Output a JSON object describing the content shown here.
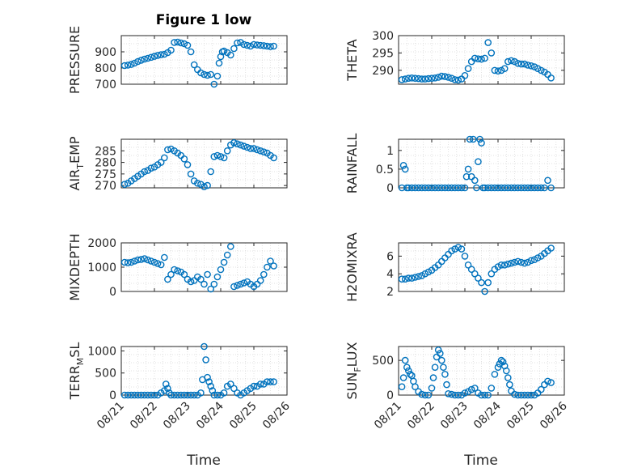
{
  "title": "Figure 1 low",
  "xlabel": "Time",
  "x_ticks": [
    "08/21",
    "08/22",
    "08/23",
    "08/24",
    "08/25",
    "08/26"
  ],
  "marker_color": "#0072BD",
  "chart_data": [
    {
      "type": "scatter",
      "ylabel": "PRESSURE",
      "ylim": [
        700,
        1000
      ],
      "yticks": [
        700,
        800,
        900
      ],
      "xlim": [
        0,
        5
      ],
      "x": [
        0.1,
        0.2,
        0.3,
        0.4,
        0.5,
        0.6,
        0.7,
        0.8,
        0.9,
        1.0,
        1.1,
        1.2,
        1.3,
        1.4,
        1.5,
        1.6,
        1.7,
        1.8,
        1.9,
        2.0,
        2.1,
        2.2,
        2.3,
        2.4,
        2.5,
        2.6,
        2.7,
        2.8,
        2.9,
        2.95,
        3.0,
        3.05,
        3.1,
        3.2,
        3.3,
        3.4,
        3.5,
        3.6,
        3.7,
        3.8,
        3.9,
        4.0,
        4.1,
        4.2,
        4.3,
        4.4,
        4.5,
        4.6
      ],
      "y": [
        815,
        818,
        822,
        830,
        840,
        848,
        855,
        860,
        866,
        872,
        878,
        882,
        885,
        895,
        910,
        958,
        960,
        955,
        950,
        940,
        900,
        820,
        790,
        770,
        760,
        755,
        760,
        700,
        750,
        830,
        870,
        900,
        905,
        895,
        880,
        920,
        955,
        958,
        945,
        940,
        935,
        945,
        942,
        940,
        938,
        935,
        932,
        935
      ]
    },
    {
      "type": "scatter",
      "ylabel": "THETA",
      "ylim": [
        286,
        300
      ],
      "yticks": [
        290,
        295,
        300
      ],
      "xlim": [
        0,
        5
      ],
      "x": [
        0.1,
        0.2,
        0.3,
        0.4,
        0.5,
        0.6,
        0.7,
        0.8,
        0.9,
        1.0,
        1.1,
        1.2,
        1.3,
        1.4,
        1.5,
        1.6,
        1.7,
        1.8,
        1.9,
        2.0,
        2.1,
        2.2,
        2.3,
        2.4,
        2.5,
        2.6,
        2.7,
        2.8,
        2.9,
        3.0,
        3.1,
        3.2,
        3.3,
        3.4,
        3.5,
        3.6,
        3.7,
        3.8,
        3.9,
        4.0,
        4.1,
        4.2,
        4.3,
        4.4,
        4.5,
        4.6
      ],
      "y": [
        287.3,
        287.5,
        287.7,
        287.8,
        287.7,
        287.6,
        287.5,
        287.5,
        287.6,
        287.7,
        287.8,
        288.0,
        288.3,
        288.2,
        288.0,
        287.7,
        287.3,
        287.2,
        287.5,
        288.5,
        290.5,
        292.5,
        293.5,
        293.3,
        293.2,
        293.5,
        298.0,
        295.0,
        290.0,
        289.8,
        290.0,
        290.5,
        292.5,
        292.8,
        292.5,
        292.0,
        291.8,
        291.8,
        291.5,
        291.3,
        291.0,
        290.5,
        290.0,
        289.5,
        288.8,
        287.8
      ]
    },
    {
      "type": "scatter",
      "ylabel": "AIR_TEMP",
      "ylim": [
        269,
        290
      ],
      "yticks": [
        270,
        275,
        280,
        285
      ],
      "xlim": [
        0,
        5
      ],
      "x": [
        0.1,
        0.2,
        0.3,
        0.4,
        0.5,
        0.6,
        0.7,
        0.8,
        0.9,
        1.0,
        1.1,
        1.2,
        1.3,
        1.4,
        1.5,
        1.6,
        1.7,
        1.8,
        1.9,
        2.0,
        2.1,
        2.2,
        2.3,
        2.4,
        2.5,
        2.6,
        2.7,
        2.8,
        2.9,
        3.0,
        3.1,
        3.2,
        3.3,
        3.4,
        3.5,
        3.6,
        3.7,
        3.8,
        3.9,
        4.0,
        4.1,
        4.2,
        4.3,
        4.4,
        4.5,
        4.6
      ],
      "y": [
        270.5,
        271.0,
        272.0,
        273.0,
        274.0,
        275.0,
        276.0,
        276.5,
        277.5,
        278.0,
        279.0,
        280.0,
        282.0,
        285.5,
        285.8,
        285.0,
        284.0,
        283.0,
        281.5,
        279.0,
        275.0,
        272.0,
        271.0,
        270.5,
        269.5,
        270.0,
        276.0,
        282.5,
        283.0,
        282.5,
        282.0,
        285.0,
        287.5,
        288.5,
        288.0,
        287.5,
        287.0,
        286.5,
        286.0,
        286.0,
        285.5,
        285.0,
        284.5,
        284.0,
        283.0,
        282.0
      ]
    },
    {
      "type": "scatter",
      "ylabel": "RAINFALL",
      "ylim": [
        0,
        1.3
      ],
      "yticks": [
        0,
        0.5,
        1
      ],
      "xlim": [
        0,
        5
      ],
      "x": [
        0.1,
        0.15,
        0.2,
        0.25,
        0.3,
        0.4,
        0.5,
        0.6,
        0.7,
        0.8,
        0.9,
        1.0,
        1.1,
        1.2,
        1.3,
        1.4,
        1.5,
        1.6,
        1.7,
        1.8,
        1.9,
        2.0,
        2.05,
        2.1,
        2.15,
        2.2,
        2.25,
        2.3,
        2.35,
        2.4,
        2.45,
        2.5,
        2.55,
        2.6,
        2.7,
        2.8,
        2.9,
        3.0,
        3.1,
        3.2,
        3.3,
        3.4,
        3.5,
        3.6,
        3.7,
        3.8,
        3.9,
        4.0,
        4.1,
        4.2,
        4.3,
        4.4,
        4.5,
        4.6
      ],
      "y": [
        0,
        0.6,
        0.5,
        0,
        0,
        0,
        0,
        0,
        0,
        0,
        0,
        0,
        0,
        0,
        0,
        0,
        0,
        0,
        0,
        0,
        0,
        0,
        0.3,
        0.5,
        1.3,
        0.3,
        1.3,
        0.2,
        0,
        0.7,
        1.3,
        1.2,
        0,
        0,
        0,
        0,
        0,
        0,
        0,
        0,
        0,
        0,
        0,
        0,
        0,
        0,
        0,
        0,
        0,
        0,
        0,
        0,
        0.2,
        0
      ]
    },
    {
      "type": "scatter",
      "ylabel": "MIXDEPTH",
      "ylim": [
        0,
        2000
      ],
      "yticks": [
        0,
        1000,
        2000
      ],
      "xlim": [
        0,
        5
      ],
      "x": [
        0.1,
        0.2,
        0.3,
        0.4,
        0.5,
        0.6,
        0.7,
        0.8,
        0.9,
        1.0,
        1.1,
        1.2,
        1.3,
        1.4,
        1.5,
        1.6,
        1.7,
        1.8,
        1.9,
        2.0,
        2.1,
        2.2,
        2.3,
        2.4,
        2.5,
        2.6,
        2.7,
        2.8,
        2.9,
        3.0,
        3.1,
        3.2,
        3.3,
        3.4,
        3.5,
        3.6,
        3.7,
        3.8,
        3.9,
        4.0,
        4.1,
        4.2,
        4.3,
        4.4,
        4.5,
        4.6
      ],
      "y": [
        1200,
        1180,
        1200,
        1250,
        1300,
        1320,
        1350,
        1300,
        1250,
        1200,
        1150,
        1100,
        1400,
        500,
        700,
        900,
        850,
        800,
        700,
        500,
        400,
        450,
        600,
        500,
        300,
        700,
        100,
        300,
        600,
        900,
        1200,
        1500,
        1850,
        200,
        250,
        300,
        350,
        400,
        300,
        200,
        300,
        450,
        700,
        1000,
        1250,
        1050
      ]
    },
    {
      "type": "scatter",
      "ylabel": "H2OMIXRA",
      "ylim": [
        2,
        7.5
      ],
      "yticks": [
        2,
        4,
        6
      ],
      "xlim": [
        0,
        5
      ],
      "x": [
        0.1,
        0.2,
        0.3,
        0.4,
        0.5,
        0.6,
        0.7,
        0.8,
        0.9,
        1.0,
        1.1,
        1.2,
        1.3,
        1.4,
        1.5,
        1.6,
        1.7,
        1.8,
        1.9,
        2.0,
        2.1,
        2.2,
        2.3,
        2.4,
        2.5,
        2.6,
        2.7,
        2.8,
        2.9,
        3.0,
        3.1,
        3.2,
        3.3,
        3.4,
        3.5,
        3.6,
        3.7,
        3.8,
        3.9,
        4.0,
        4.1,
        4.2,
        4.3,
        4.4,
        4.5,
        4.6
      ],
      "y": [
        3.4,
        3.4,
        3.5,
        3.5,
        3.6,
        3.7,
        3.8,
        4.0,
        4.2,
        4.4,
        4.7,
        5.0,
        5.4,
        5.8,
        6.2,
        6.6,
        6.8,
        7.0,
        6.8,
        6.0,
        5.0,
        4.5,
        4.0,
        3.5,
        3.0,
        2.0,
        3.0,
        4.0,
        4.5,
        4.8,
        5.0,
        5.0,
        5.1,
        5.2,
        5.3,
        5.4,
        5.3,
        5.2,
        5.3,
        5.5,
        5.6,
        5.8,
        6.0,
        6.3,
        6.6,
        6.9
      ]
    },
    {
      "type": "scatter",
      "ylabel": "TERR_MSL",
      "ylim": [
        0,
        1100
      ],
      "yticks": [
        0,
        500,
        1000
      ],
      "xlim": [
        0,
        5
      ],
      "x": [
        0.1,
        0.2,
        0.3,
        0.4,
        0.5,
        0.6,
        0.7,
        0.8,
        0.9,
        1.0,
        1.1,
        1.2,
        1.3,
        1.35,
        1.4,
        1.45,
        1.5,
        1.6,
        1.7,
        1.8,
        1.9,
        2.0,
        2.1,
        2.2,
        2.3,
        2.4,
        2.45,
        2.5,
        2.55,
        2.6,
        2.65,
        2.7,
        2.75,
        2.8,
        2.9,
        3.0,
        3.1,
        3.2,
        3.3,
        3.4,
        3.5,
        3.6,
        3.7,
        3.8,
        3.9,
        4.0,
        4.1,
        4.2,
        4.3,
        4.4,
        4.5,
        4.6
      ],
      "y": [
        0,
        0,
        0,
        0,
        0,
        0,
        0,
        0,
        0,
        0,
        0,
        50,
        100,
        250,
        150,
        50,
        0,
        0,
        0,
        0,
        0,
        0,
        0,
        0,
        0,
        50,
        350,
        1100,
        800,
        400,
        300,
        200,
        100,
        0,
        0,
        0,
        50,
        200,
        250,
        150,
        50,
        0,
        50,
        100,
        150,
        200,
        200,
        250,
        250,
        300,
        300,
        300
      ]
    },
    {
      "type": "scatter",
      "ylabel": "SUN_FLUX",
      "ylim": [
        0,
        700
      ],
      "yticks": [
        0,
        500
      ],
      "xlim": [
        0,
        5
      ],
      "x": [
        0.1,
        0.15,
        0.2,
        0.25,
        0.3,
        0.35,
        0.4,
        0.45,
        0.5,
        0.6,
        0.7,
        0.8,
        0.9,
        1.0,
        1.05,
        1.1,
        1.15,
        1.2,
        1.25,
        1.3,
        1.35,
        1.4,
        1.45,
        1.5,
        1.6,
        1.7,
        1.8,
        1.9,
        2.0,
        2.1,
        2.2,
        2.3,
        2.4,
        2.5,
        2.6,
        2.7,
        2.8,
        2.9,
        3.0,
        3.05,
        3.1,
        3.15,
        3.2,
        3.25,
        3.3,
        3.35,
        3.4,
        3.5,
        3.6,
        3.7,
        3.8,
        3.9,
        4.0,
        4.1,
        4.2,
        4.3,
        4.4,
        4.5,
        4.6
      ],
      "y": [
        120,
        250,
        500,
        400,
        350,
        300,
        280,
        200,
        120,
        50,
        10,
        0,
        0,
        100,
        250,
        400,
        550,
        650,
        600,
        500,
        400,
        300,
        150,
        20,
        10,
        0,
        0,
        0,
        30,
        50,
        80,
        100,
        30,
        0,
        0,
        0,
        100,
        300,
        400,
        450,
        500,
        480,
        420,
        350,
        250,
        150,
        60,
        10,
        0,
        0,
        0,
        0,
        0,
        0,
        30,
        80,
        150,
        200,
        180
      ]
    }
  ]
}
